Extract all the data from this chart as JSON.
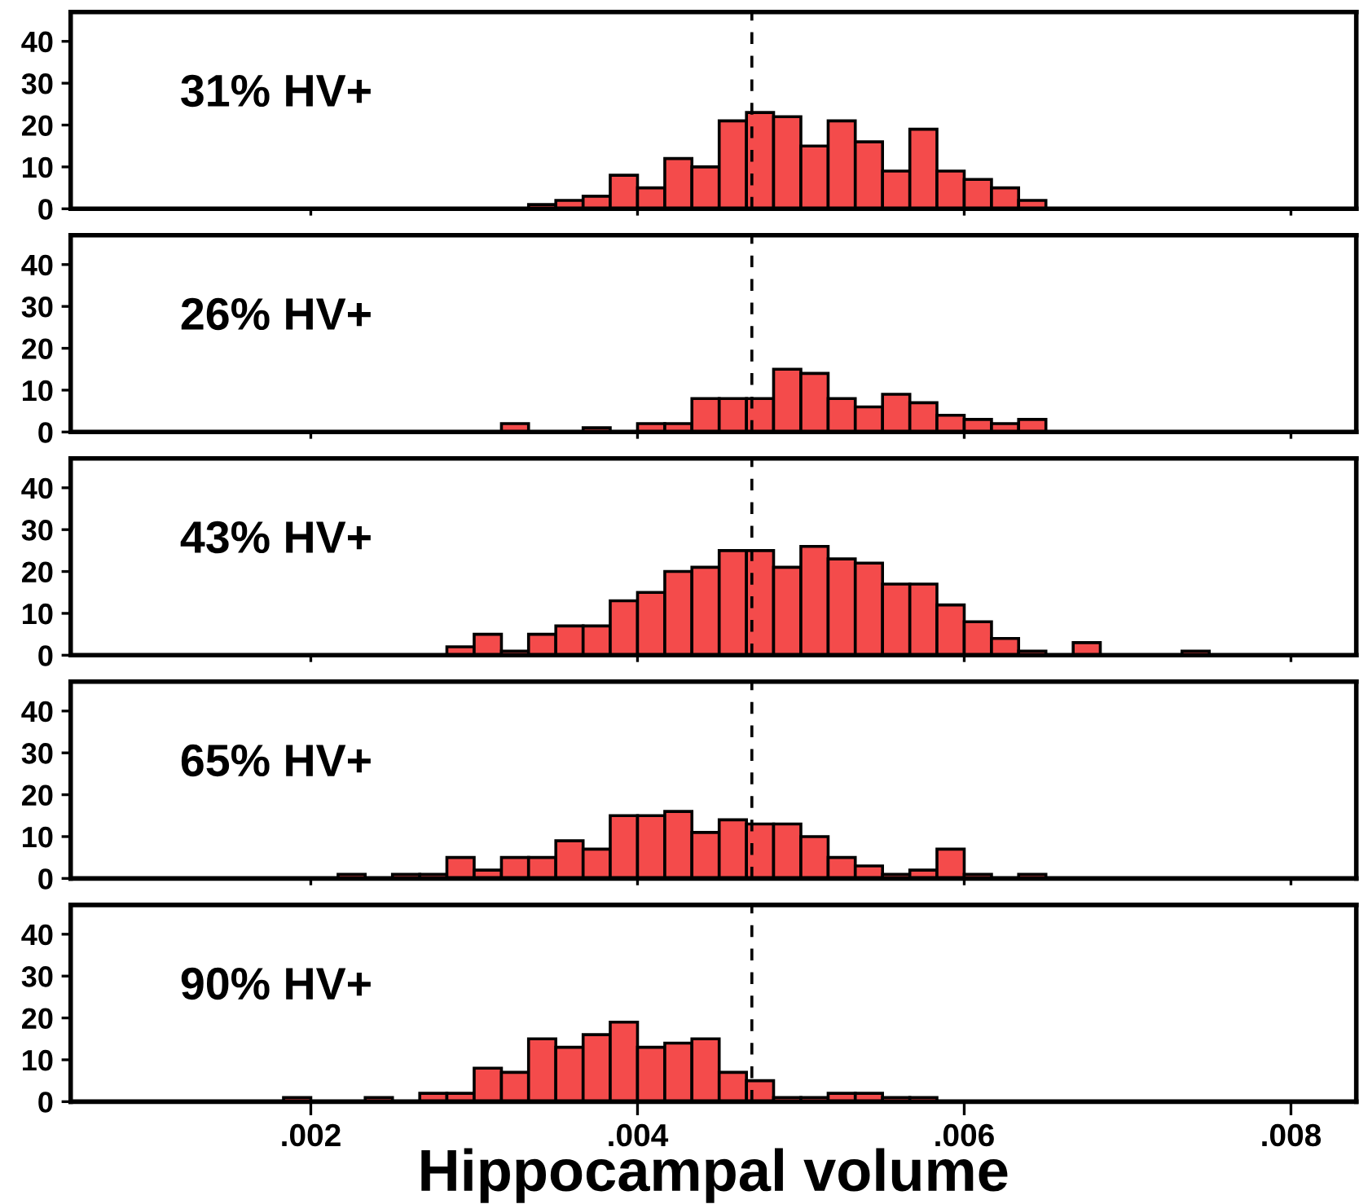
{
  "chart_data": [
    {
      "type": "histogram",
      "annotations": [
        "31% HV+"
      ],
      "color": "#f44b4b",
      "tick_labels": "y",
      "bins": [
        0.003333,
        0.0035,
        0.003667,
        0.003833,
        0.004,
        0.004167,
        0.004333,
        0.0045,
        0.004667,
        0.004833,
        0.005,
        0.005167,
        0.005333,
        0.0055,
        0.005667,
        0.005833,
        0.006,
        0.006167,
        0.006333,
        0.0065
      ],
      "values": [
        1,
        2,
        3,
        8,
        5,
        12,
        10,
        21,
        23,
        22,
        15,
        21,
        16,
        9,
        19,
        9,
        7,
        5,
        2
      ],
      "xlim": [
        0.00053,
        0.0084
      ],
      "xticks": [
        {
          "value": 0.002,
          "label": null
        },
        {
          "value": 0.004,
          "label": null
        },
        {
          "value": 0.006,
          "label": null
        },
        {
          "value": 0.008,
          "label": null
        }
      ],
      "ylim": [
        0,
        47
      ],
      "yticks": [
        0,
        10,
        20,
        30,
        40
      ],
      "ref_lines": [
        {
          "axis": "x",
          "value": 0.0047,
          "line_style": "dashed",
          "color": "#000000"
        }
      ]
    },
    {
      "type": "histogram",
      "annotations": [
        "26% HV+"
      ],
      "color": "#f44b4b",
      "tick_labels": "y",
      "bins": [
        0.003167,
        0.003333,
        0.0035,
        0.003667,
        0.003833,
        0.004,
        0.004167,
        0.004333,
        0.0045,
        0.004667,
        0.004833,
        0.005,
        0.005167,
        0.005333,
        0.0055,
        0.005667,
        0.005833,
        0.006,
        0.006167,
        0.006333,
        0.0065
      ],
      "values": [
        2,
        0,
        0,
        1,
        0,
        2,
        2,
        8,
        8,
        8,
        15,
        14,
        8,
        6,
        9,
        7,
        4,
        3,
        2,
        3
      ],
      "xlim": [
        0.00053,
        0.0084
      ],
      "xticks": [
        {
          "value": 0.002,
          "label": null
        },
        {
          "value": 0.004,
          "label": null
        },
        {
          "value": 0.006,
          "label": null
        },
        {
          "value": 0.008,
          "label": null
        }
      ],
      "ylim": [
        0,
        47
      ],
      "yticks": [
        0,
        10,
        20,
        30,
        40
      ],
      "ref_lines": [
        {
          "axis": "x",
          "value": 0.0047,
          "line_style": "dashed",
          "color": "#000000"
        }
      ]
    },
    {
      "type": "histogram",
      "annotations": [
        "43% HV+"
      ],
      "color": "#f44b4b",
      "tick_labels": "y",
      "bins": [
        0.002833,
        0.003,
        0.003167,
        0.003333,
        0.0035,
        0.003667,
        0.003833,
        0.004,
        0.004167,
        0.004333,
        0.0045,
        0.004667,
        0.004833,
        0.005,
        0.005167,
        0.005333,
        0.0055,
        0.005667,
        0.005833,
        0.006,
        0.006167,
        0.006333,
        0.0065,
        0.006667,
        0.006833,
        0.007,
        0.007167,
        0.007333,
        0.0075
      ],
      "values": [
        2,
        5,
        1,
        5,
        7,
        7,
        13,
        15,
        20,
        21,
        25,
        25,
        21,
        26,
        23,
        22,
        17,
        17,
        12,
        8,
        4,
        1,
        0,
        3,
        0,
        0,
        0,
        1
      ],
      "xlim": [
        0.00053,
        0.0084
      ],
      "xticks": [
        {
          "value": 0.002,
          "label": null
        },
        {
          "value": 0.004,
          "label": null
        },
        {
          "value": 0.006,
          "label": null
        },
        {
          "value": 0.008,
          "label": null
        }
      ],
      "ylim": [
        0,
        47
      ],
      "yticks": [
        0,
        10,
        20,
        30,
        40
      ],
      "ref_lines": [
        {
          "axis": "x",
          "value": 0.0047,
          "line_style": "dashed",
          "color": "#000000"
        }
      ]
    },
    {
      "type": "histogram",
      "annotations": [
        "65% HV+"
      ],
      "color": "#f44b4b",
      "tick_labels": "y",
      "bins": [
        0.002167,
        0.002333,
        0.0025,
        0.002667,
        0.002833,
        0.003,
        0.003167,
        0.003333,
        0.0035,
        0.003667,
        0.003833,
        0.004,
        0.004167,
        0.004333,
        0.0045,
        0.004667,
        0.004833,
        0.005,
        0.005167,
        0.005333,
        0.0055,
        0.005667,
        0.005833,
        0.006,
        0.006167,
        0.006333,
        0.0065
      ],
      "values": [
        1,
        0,
        1,
        1,
        5,
        2,
        5,
        5,
        9,
        7,
        15,
        15,
        16,
        11,
        14,
        13,
        13,
        10,
        5,
        3,
        1,
        2,
        7,
        1,
        0,
        1
      ],
      "xlim": [
        0.00053,
        0.0084
      ],
      "xticks": [
        {
          "value": 0.002,
          "label": null
        },
        {
          "value": 0.004,
          "label": null
        },
        {
          "value": 0.006,
          "label": null
        },
        {
          "value": 0.008,
          "label": null
        }
      ],
      "ylim": [
        0,
        47
      ],
      "yticks": [
        0,
        10,
        20,
        30,
        40
      ],
      "ref_lines": [
        {
          "axis": "x",
          "value": 0.0047,
          "line_style": "dashed",
          "color": "#000000"
        }
      ]
    },
    {
      "type": "histogram",
      "annotations": [
        "90% HV+"
      ],
      "color": "#f44b4b",
      "xlabel": "Hippocampal volume",
      "bins": [
        0.001833,
        0.002,
        0.002167,
        0.002333,
        0.0025,
        0.002667,
        0.002833,
        0.003,
        0.003167,
        0.003333,
        0.0035,
        0.003667,
        0.003833,
        0.004,
        0.004167,
        0.004333,
        0.0045,
        0.004667,
        0.004833,
        0.005,
        0.005167,
        0.005333,
        0.0055,
        0.005667,
        0.005833
      ],
      "values": [
        1,
        0,
        0,
        1,
        0,
        2,
        2,
        8,
        7,
        15,
        13,
        16,
        19,
        13,
        14,
        15,
        7,
        5,
        1,
        1,
        2,
        2,
        1,
        1
      ],
      "xlim": [
        0.00053,
        0.0084
      ],
      "xticks": [
        {
          "value": 0.002,
          "label": ".002"
        },
        {
          "value": 0.004,
          "label": ".004"
        },
        {
          "value": 0.006,
          "label": ".006"
        },
        {
          "value": 0.008,
          "label": ".008"
        }
      ],
      "ylim": [
        0,
        47
      ],
      "yticks": [
        0,
        10,
        20,
        30,
        40
      ],
      "ref_lines": [
        {
          "axis": "x",
          "value": 0.0047,
          "line_style": "dashed",
          "color": "#000000"
        }
      ]
    }
  ]
}
